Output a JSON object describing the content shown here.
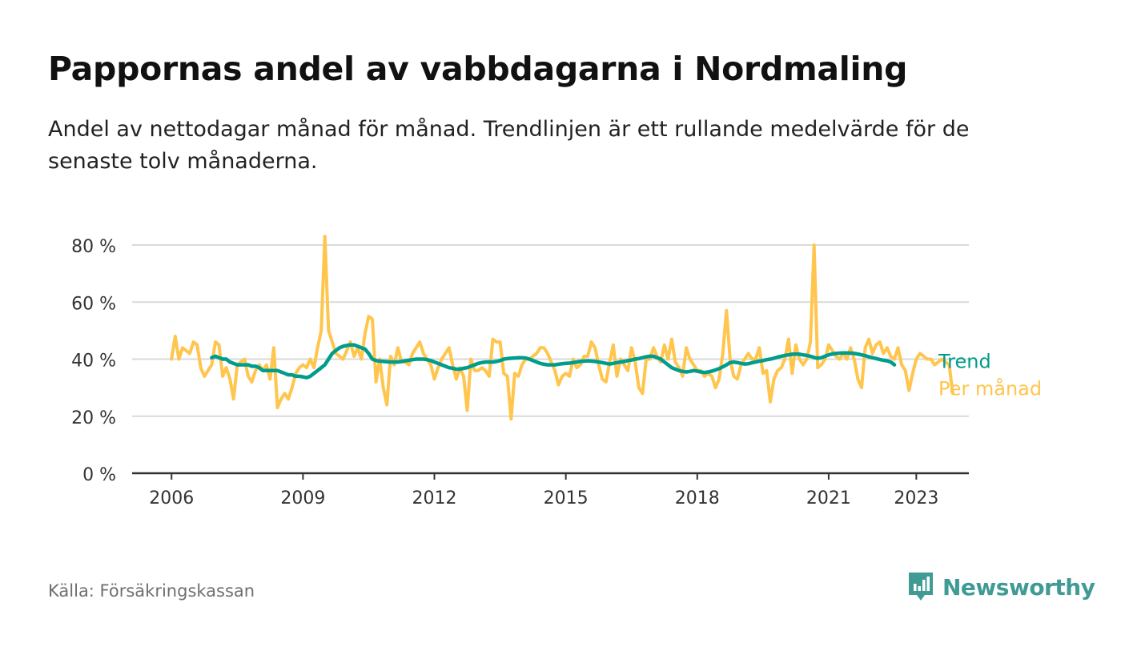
{
  "title": "Pappornas andel av vabbdagarna i Nordmaling",
  "subtitle": "Andel av nettodagar månad för månad. Trendlinjen är ett rullande medelvärde för de senaste tolv månaderna.",
  "source": "Källa: Försäkringskassan",
  "brand": {
    "name": "Newsworthy",
    "icon": "newsworthy-logo-icon",
    "color": "#3f9b94"
  },
  "chart_data": {
    "type": "line",
    "title": "Pappornas andel av vabbdagarna i Nordmaling",
    "xlabel": "",
    "ylabel": "",
    "x_start": "2006-01",
    "x_frequency": "monthly",
    "x_range": [
      2005.1,
      2024.2
    ],
    "ylim": [
      0,
      80
    ],
    "y_ticks": [
      0,
      20,
      40,
      60,
      80
    ],
    "y_tick_labels": [
      "0 %",
      "20 %",
      "40 %",
      "60 %",
      "80 %"
    ],
    "x_ticks": [
      2006,
      2009,
      2012,
      2015,
      2018,
      2021,
      2023
    ],
    "x_tick_labels": [
      "2006",
      "2009",
      "2012",
      "2015",
      "2018",
      "2021",
      "2023"
    ],
    "grid": true,
    "legend": "right-end labels",
    "series": [
      {
        "name": "Per månad",
        "color": "#ffc54d",
        "values": [
          40,
          48,
          40,
          44,
          43,
          42,
          46,
          45,
          37,
          34,
          36,
          38,
          46,
          45,
          34,
          37,
          33,
          26,
          38,
          39,
          40,
          34,
          32,
          36,
          38,
          36,
          38,
          33,
          44,
          23,
          26,
          28,
          26,
          30,
          35,
          37,
          38,
          37,
          40,
          37,
          44,
          50,
          83,
          50,
          46,
          42,
          41,
          40,
          43,
          46,
          41,
          44,
          40,
          49,
          55,
          54,
          32,
          40,
          30,
          24,
          41,
          38,
          44,
          39,
          39,
          38,
          42,
          44,
          46,
          42,
          40,
          38,
          33,
          37,
          40,
          42,
          44,
          38,
          33,
          37,
          34,
          22,
          40,
          36,
          36,
          37,
          36,
          34,
          47,
          46,
          46,
          35,
          34,
          19,
          35,
          34,
          38,
          40,
          40,
          41,
          42,
          44,
          44,
          42,
          39,
          36,
          31,
          34,
          35,
          34,
          40,
          37,
          38,
          41,
          41,
          46,
          44,
          38,
          33,
          32,
          39,
          45,
          34,
          40,
          38,
          36,
          44,
          39,
          30,
          28,
          40,
          40,
          44,
          41,
          39,
          45,
          40,
          47,
          39,
          37,
          34,
          44,
          40,
          38,
          36,
          36,
          34,
          35,
          34,
          30,
          33,
          42,
          57,
          40,
          34,
          33,
          38,
          40,
          42,
          40,
          40,
          44,
          35,
          36,
          25,
          33,
          36,
          37,
          40,
          47,
          35,
          45,
          40,
          38,
          40,
          46,
          80,
          37,
          38,
          40,
          45,
          43,
          41,
          40,
          42,
          40,
          44,
          40,
          33,
          30,
          44,
          47,
          42,
          45,
          46,
          42,
          44,
          41,
          40,
          44,
          38,
          36,
          29,
          35,
          40,
          42,
          41,
          40,
          40,
          38,
          39,
          40,
          39,
          38,
          28
        ]
      },
      {
        "name": "Trend",
        "color": "#009c8c",
        "x_start": "2006-12",
        "values": [
          40.5,
          41,
          40.5,
          40,
          40,
          39,
          38.5,
          38,
          38,
          38,
          38,
          37.5,
          37.5,
          37,
          36,
          36,
          36,
          36,
          36,
          35.5,
          35,
          34.5,
          34.5,
          34,
          34,
          33.8,
          33.5,
          34,
          35,
          36,
          37,
          38,
          40,
          42,
          43,
          44,
          44.5,
          44.8,
          45,
          45,
          44.5,
          44,
          43.5,
          42,
          40,
          39.5,
          39.3,
          39.2,
          39.1,
          39,
          39,
          39,
          39.2,
          39.4,
          39.6,
          39.8,
          40,
          40,
          40,
          39.8,
          39.5,
          39,
          38.5,
          38,
          37.5,
          37,
          36.8,
          36.5,
          36.5,
          36.8,
          37,
          37.5,
          38,
          38.5,
          38.8,
          39,
          39,
          39,
          39.2,
          39.5,
          40,
          40.2,
          40.3,
          40.4,
          40.5,
          40.5,
          40.4,
          40,
          39.5,
          39,
          38.5,
          38.2,
          38,
          38,
          38,
          38.2,
          38.4,
          38.5,
          38.6,
          38.8,
          39,
          39.2,
          39.3,
          39.4,
          39.3,
          39.2,
          39,
          38.8,
          38.5,
          38.3,
          38.5,
          38.8,
          39,
          39.2,
          39.5,
          39.7,
          40,
          40.2,
          40.5,
          40.8,
          41,
          41,
          40.5,
          40,
          39,
          38,
          37,
          36.5,
          36,
          35.7,
          35.5,
          35.7,
          36,
          35.8,
          35.5,
          35.3,
          35.5,
          35.8,
          36.2,
          36.7,
          37.3,
          38,
          38.8,
          39,
          38.8,
          38.5,
          38.3,
          38.4,
          38.7,
          39,
          39.3,
          39.5,
          39.8,
          40,
          40.3,
          40.7,
          41,
          41.3,
          41.5,
          41.7,
          41.8,
          41.7,
          41.5,
          41.3,
          41,
          40.6,
          40.3,
          40.5,
          41,
          41.5,
          41.8,
          42,
          42.1,
          42.2,
          42.2,
          42.1,
          42,
          41.8,
          41.5,
          41.2,
          40.8,
          40.5,
          40.2,
          39.9,
          39.6,
          39.4,
          39,
          38
        ]
      }
    ]
  }
}
